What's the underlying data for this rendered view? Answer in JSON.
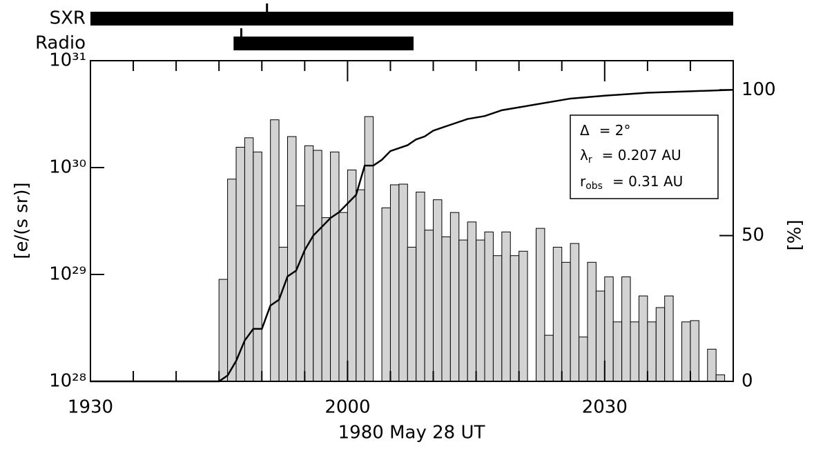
{
  "chart_data": {
    "type": "histogram",
    "yscale": "log",
    "color": "#d3d3d3",
    "xlabel": "1980 May 28 UT",
    "ylabel": "[e/(s sr)]",
    "y2label": "[%]",
    "xlim": [
      1170,
      1245
    ],
    "xticks": [
      {
        "value": 1170,
        "label": "1930"
      },
      {
        "value": 1200,
        "label": "2000"
      },
      {
        "value": 1230,
        "label": "2030"
      }
    ],
    "xminorticks": [
      1175,
      1180,
      1185,
      1190,
      1195,
      1205,
      1210,
      1215,
      1220,
      1225,
      1235,
      1240
    ],
    "ylim": [
      1e+28,
      1e+31
    ],
    "yticks": [
      {
        "value": 1e+28,
        "label": "10²⁸"
      },
      {
        "value": 1e+29,
        "label": "10²⁹"
      },
      {
        "value": 1e+30,
        "label": "10³⁰"
      },
      {
        "value": 1e+31,
        "label": "10³¹"
      }
    ],
    "y2lim": [
      0,
      110
    ],
    "y2ticks": [
      0,
      50,
      100
    ],
    "bins": [
      1185,
      1186,
      1187,
      1188,
      1189,
      1190,
      1191,
      1192,
      1193,
      1194,
      1195,
      1196,
      1197,
      1198,
      1199,
      1200,
      1201,
      1202,
      1203,
      1204,
      1205,
      1206,
      1207,
      1208,
      1209,
      1210,
      1211,
      1212,
      1213,
      1214,
      1215,
      1216,
      1217,
      1218,
      1219,
      1220,
      1221,
      1222,
      1223,
      1224,
      1225,
      1226,
      1227,
      1228,
      1229,
      1230,
      1231,
      1232,
      1233,
      1234,
      1235,
      1236,
      1237,
      1238,
      1239,
      1240,
      1241,
      1242,
      1243,
      1244
    ],
    "values": [
      9e+28,
      7.8e+29,
      1.55e+30,
      1.9e+30,
      1.4e+30,
      null,
      2.8e+30,
      1.8e+29,
      1.95e+30,
      4.4e+29,
      1.6e+30,
      1.45e+30,
      3.4e+29,
      1.4e+30,
      3.8e+29,
      9.5e+29,
      6.2e+29,
      3e+30,
      null,
      4.2e+29,
      6.9e+29,
      7e+29,
      1.8e+29,
      5.9e+29,
      2.6e+29,
      5e+29,
      2.25e+29,
      3.8e+29,
      2.1e+29,
      3.1e+29,
      2.1e+29,
      2.5e+29,
      1.5e+29,
      2.5e+29,
      1.5e+29,
      1.65e+29,
      null,
      2.7e+29,
      2.7e+28,
      1.8e+29,
      1.3e+29,
      1.95e+29,
      2.6e+28,
      1.3e+29,
      7e+28,
      9.5e+28,
      3.6e+28,
      9.5e+28,
      3.6e+28,
      6.3e+28,
      3.6e+28,
      4.9e+28,
      6.3e+28,
      null,
      3.6e+28,
      3.7e+28,
      null,
      2e+28,
      1.15e+28
    ],
    "line": {
      "type": "line",
      "axis": "y2",
      "color": "#000000",
      "x": [
        1170,
        1185,
        1186,
        1187,
        1188,
        1189,
        1190,
        1191,
        1192,
        1193,
        1194,
        1195,
        1196,
        1197,
        1198,
        1199,
        1200,
        1201,
        1202,
        1203,
        1204,
        1205,
        1206,
        1207,
        1208,
        1209,
        1210,
        1211,
        1212,
        1214,
        1216,
        1218,
        1220,
        1222,
        1224,
        1226,
        1230,
        1235,
        1240,
        1245
      ],
      "values": [
        0,
        0,
        2,
        7,
        14,
        18,
        18,
        26,
        28,
        36,
        38,
        45,
        50,
        53,
        56,
        58,
        61,
        64,
        74,
        74,
        76,
        79,
        80,
        81,
        83,
        84,
        86,
        87,
        88,
        90,
        91,
        93,
        94,
        95,
        96,
        97,
        98,
        99,
        99.5,
        100
      ]
    },
    "intervals": [
      {
        "name": "SXR",
        "start": 1170,
        "end": 1245,
        "marker": 1190.6
      },
      {
        "name": "Radio",
        "start": 1186.7,
        "end": 1207.7,
        "marker": 1187.6
      }
    ],
    "annotations": [
      {
        "symbol": "Δ",
        "sub": null,
        "text": "= 2°"
      },
      {
        "symbol": "λ",
        "sub": "r",
        "text": "= 0.207 AU"
      },
      {
        "symbol": "r",
        "sub": "obs",
        "text": "= 0.31 AU"
      }
    ]
  }
}
